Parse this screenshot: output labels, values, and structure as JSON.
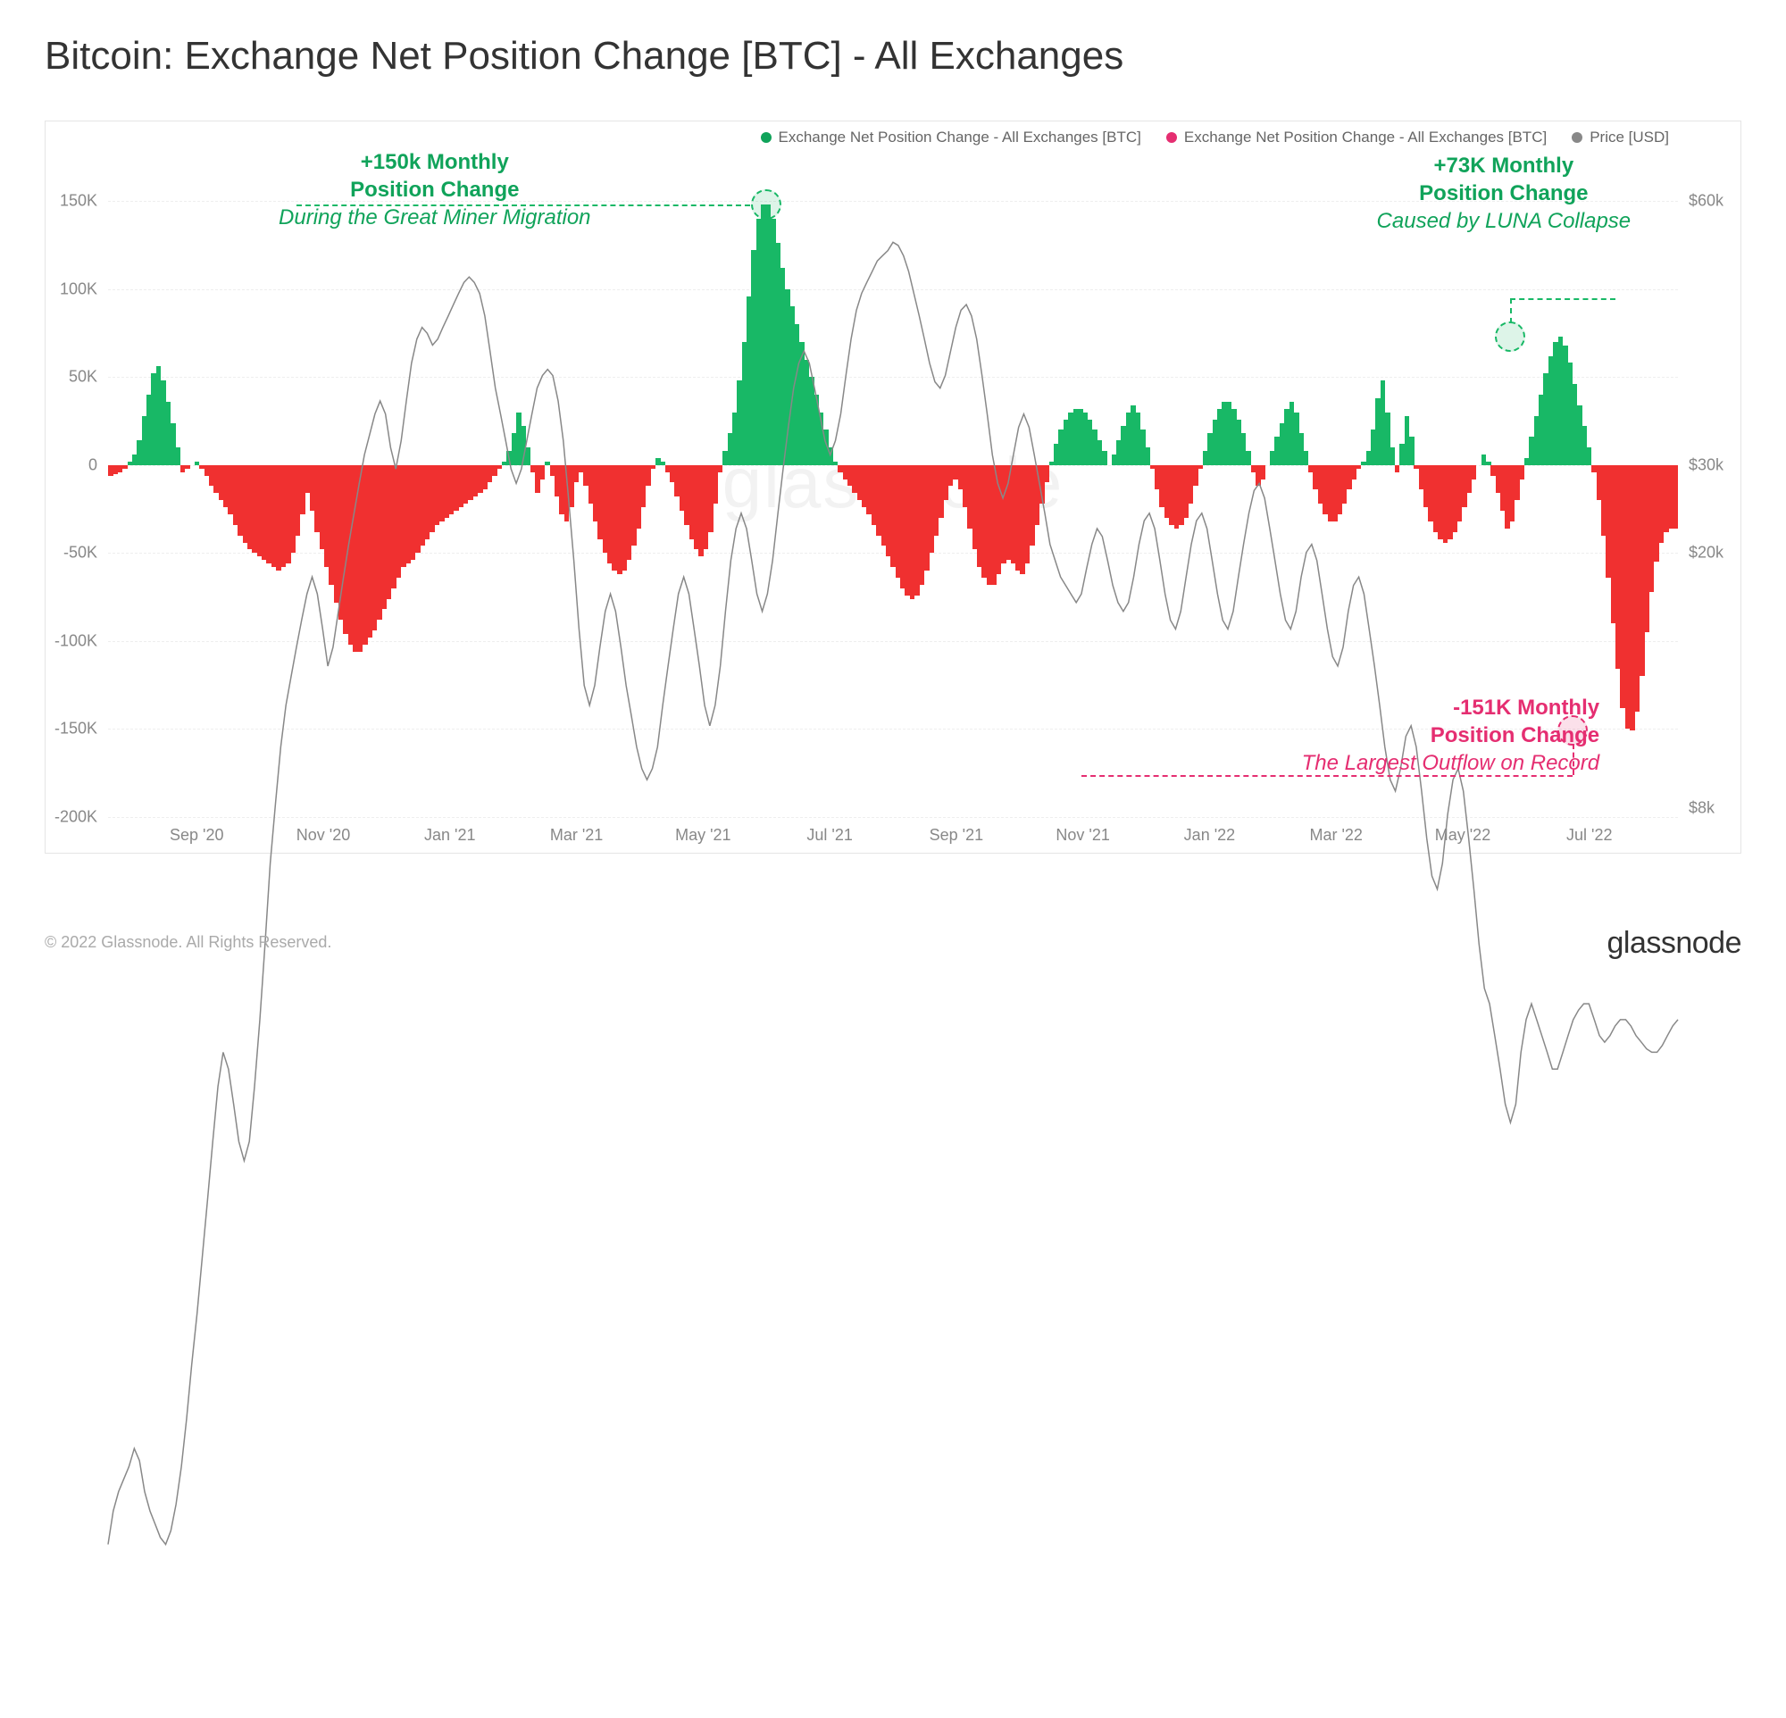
{
  "title": "Bitcoin: Exchange Net Position Change [BTC] - All Exchanges",
  "watermark": "glassnode",
  "footer": {
    "copyright": "© 2022 Glassnode. All Rights Reserved.",
    "brand": "glassnode"
  },
  "legend": {
    "pos": {
      "label": "Exchange Net Position Change - All Exchanges [BTC]",
      "color": "#10a35a"
    },
    "neg": {
      "label": "Exchange Net Position Change - All Exchanges [BTC]",
      "color": "#e52e71"
    },
    "price": {
      "label": "Price [USD]",
      "color": "#888888"
    }
  },
  "chart": {
    "background": "#ffffff",
    "grid_color": "#eeeeee",
    "axis_text_color": "#888888",
    "left_axis": {
      "min": -200000,
      "max": 180000,
      "ticks": [
        -200000,
        -150000,
        -100000,
        -50000,
        0,
        50000,
        100000,
        150000
      ],
      "tick_labels": [
        "-200K",
        "-150K",
        "-100K",
        "-50K",
        "0",
        "50K",
        "100K",
        "150K"
      ]
    },
    "right_axis": {
      "type": "log",
      "ticks": [
        8000,
        20000,
        30000,
        60000
      ],
      "tick_labels": [
        "$8k",
        "$20k",
        "$30k",
        "$60k"
      ],
      "tick_pos_btc": [
        -195000,
        -50000,
        0,
        150000
      ]
    },
    "x_axis": {
      "labels": [
        "Sep '20",
        "Nov '20",
        "Jan '21",
        "Mar '21",
        "May '21",
        "Jul '21",
        "Sep '21",
        "Nov '21",
        "Jan '22",
        "Mar '22",
        "May '22",
        "Jul '22"
      ]
    },
    "colors": {
      "pos": "#18b866",
      "neg": "#f03030",
      "price": "#888888"
    },
    "bars": [
      -6,
      -5,
      -4,
      -2,
      2,
      6,
      14,
      28,
      40,
      52,
      56,
      48,
      36,
      24,
      10,
      -4,
      -2,
      0,
      2,
      -2,
      -6,
      -12,
      -16,
      -20,
      -24,
      -28,
      -34,
      -40,
      -44,
      -48,
      -50,
      -52,
      -54,
      -56,
      -58,
      -60,
      -58,
      -56,
      -50,
      -40,
      -28,
      -16,
      -26,
      -38,
      -48,
      -58,
      -68,
      -78,
      -88,
      -96,
      -102,
      -106,
      -106,
      -102,
      -98,
      -94,
      -88,
      -82,
      -76,
      -70,
      -64,
      -58,
      -56,
      -54,
      -50,
      -46,
      -42,
      -38,
      -34,
      -32,
      -30,
      -28,
      -26,
      -24,
      -22,
      -20,
      -18,
      -16,
      -14,
      -10,
      -6,
      -2,
      2,
      8,
      18,
      30,
      22,
      10,
      -4,
      -16,
      -8,
      2,
      -6,
      -18,
      -28,
      -32,
      -24,
      -10,
      -4,
      -12,
      -22,
      -32,
      -42,
      -50,
      -56,
      -60,
      -62,
      -60,
      -54,
      -46,
      -36,
      -24,
      -12,
      -2,
      4,
      2,
      -4,
      -10,
      -18,
      -26,
      -34,
      -42,
      -48,
      -52,
      -48,
      -38,
      -22,
      -4,
      8,
      18,
      30,
      48,
      70,
      96,
      122,
      140,
      148,
      148,
      140,
      126,
      112,
      100,
      90,
      80,
      70,
      60,
      50,
      40,
      30,
      20,
      10,
      2,
      -4,
      -8,
      -12,
      -16,
      -20,
      -24,
      -28,
      -34,
      -40,
      -46,
      -52,
      -58,
      -64,
      -70,
      -74,
      -76,
      -74,
      -68,
      -60,
      -50,
      -40,
      -30,
      -20,
      -12,
      -8,
      -14,
      -24,
      -36,
      -48,
      -58,
      -64,
      -68,
      -68,
      -62,
      -56,
      -54,
      -56,
      -60,
      -62,
      -56,
      -46,
      -34,
      -22,
      -10,
      2,
      12,
      20,
      26,
      30,
      32,
      32,
      30,
      26,
      20,
      14,
      8,
      0,
      6,
      14,
      22,
      30,
      34,
      30,
      20,
      10,
      -2,
      -14,
      -24,
      -30,
      -34,
      -36,
      -34,
      -30,
      -22,
      -12,
      -2,
      8,
      18,
      26,
      32,
      36,
      36,
      32,
      26,
      18,
      8,
      -4,
      -12,
      -8,
      0,
      8,
      16,
      24,
      32,
      36,
      30,
      18,
      8,
      -4,
      -14,
      -22,
      -28,
      -32,
      -32,
      -28,
      -22,
      -14,
      -8,
      -2,
      2,
      8,
      20,
      38,
      48,
      30,
      10,
      -4,
      12,
      28,
      16,
      -2,
      -14,
      -24,
      -32,
      -38,
      -42,
      -44,
      -42,
      -38,
      -32,
      -24,
      -16,
      -8,
      0,
      6,
      2,
      -6,
      -16,
      -26,
      -36,
      -32,
      -20,
      -8,
      4,
      16,
      28,
      40,
      52,
      62,
      70,
      73,
      68,
      58,
      46,
      34,
      22,
      10,
      -4,
      -20,
      -40,
      -64,
      -90,
      -116,
      -138,
      -150,
      -151,
      -140,
      -120,
      -95,
      -72,
      -55,
      -44,
      -38,
      -36,
      -36
    ],
    "price": [
      10,
      10.5,
      10.8,
      11,
      11.2,
      11.5,
      11.3,
      10.8,
      10.5,
      10.3,
      10.1,
      10,
      10.2,
      10.6,
      11.2,
      12,
      13,
      14,
      15.2,
      16.5,
      18,
      19.5,
      20.5,
      20,
      19,
      18,
      17.5,
      18,
      19.5,
      21.5,
      24,
      27,
      29.5,
      32,
      34,
      35.5,
      37,
      38.5,
      40,
      41,
      40,
      38,
      36,
      37,
      39,
      41,
      43,
      45,
      47,
      49,
      50.5,
      52,
      53,
      52,
      49.5,
      48,
      50,
      53,
      56,
      58,
      59,
      58.5,
      57.5,
      58,
      59,
      60,
      61,
      62,
      63,
      63.5,
      63,
      62,
      60,
      57,
      54,
      52,
      50,
      48,
      47,
      48,
      50,
      52,
      54,
      55,
      55.5,
      55,
      53,
      50,
      46,
      42,
      38,
      35,
      34,
      35,
      37,
      39,
      40,
      39,
      37,
      35,
      33.5,
      32,
      31,
      30.5,
      31,
      32,
      34,
      36,
      38,
      40,
      41,
      40,
      38,
      36,
      34,
      33,
      34,
      36,
      39,
      42,
      44,
      45,
      44,
      42,
      40,
      39,
      40,
      42,
      45,
      48,
      51,
      54,
      56,
      57,
      56,
      54,
      52,
      50,
      49,
      50,
      52,
      55,
      58,
      60.5,
      62,
      63,
      64,
      65,
      65.5,
      66,
      66.8,
      66.5,
      65.5,
      64,
      62,
      60,
      58,
      56,
      54.5,
      54,
      55,
      57,
      59,
      60.5,
      61,
      60,
      58,
      55,
      52,
      49,
      47,
      46,
      47,
      49,
      51,
      52,
      51,
      49,
      47,
      45,
      43,
      42,
      41,
      40.5,
      40,
      39.5,
      40,
      41.5,
      43,
      44,
      43.5,
      42,
      40.5,
      39.5,
      39,
      39.5,
      41,
      43,
      44.5,
      45,
      44,
      42,
      40,
      38.5,
      38,
      39,
      41,
      43,
      44.5,
      45,
      44,
      42,
      40,
      38.5,
      38,
      39,
      41,
      43,
      45,
      46.5,
      47,
      46,
      44,
      42,
      40,
      38.5,
      38,
      39,
      41,
      42.5,
      43,
      42,
      40,
      38,
      36.5,
      36,
      37,
      39,
      40.5,
      41,
      40,
      38,
      36,
      34,
      32,
      30.5,
      30,
      31,
      32.5,
      33,
      32,
      30,
      28,
      26.5,
      26,
      27,
      29,
      30.5,
      31,
      30,
      28,
      26,
      24,
      22.5,
      22,
      21,
      20,
      19,
      18.5,
      19,
      20.5,
      21.5,
      22,
      21.5,
      21,
      20.5,
      20,
      20,
      20.5,
      21,
      21.5,
      21.8,
      22,
      22,
      21.5,
      21,
      20.8,
      21,
      21.3,
      21.5,
      21.5,
      21.3,
      21,
      20.8,
      20.6,
      20.5,
      20.5,
      20.7,
      21,
      21.3,
      21.5
    ],
    "price_min": 8,
    "price_max": 70
  },
  "annotations": {
    "a1": {
      "line1": "+150k Monthly",
      "line2": "Position Change",
      "sub": "During the Great Miner Migration"
    },
    "a2": {
      "line1": "+73K Monthly",
      "line2": "Position Change",
      "sub": "Caused by LUNA Collapse"
    },
    "a3": {
      "line1": "-151K Monthly",
      "line2": "Position Change",
      "sub": "The Largest Outflow on Record"
    }
  }
}
